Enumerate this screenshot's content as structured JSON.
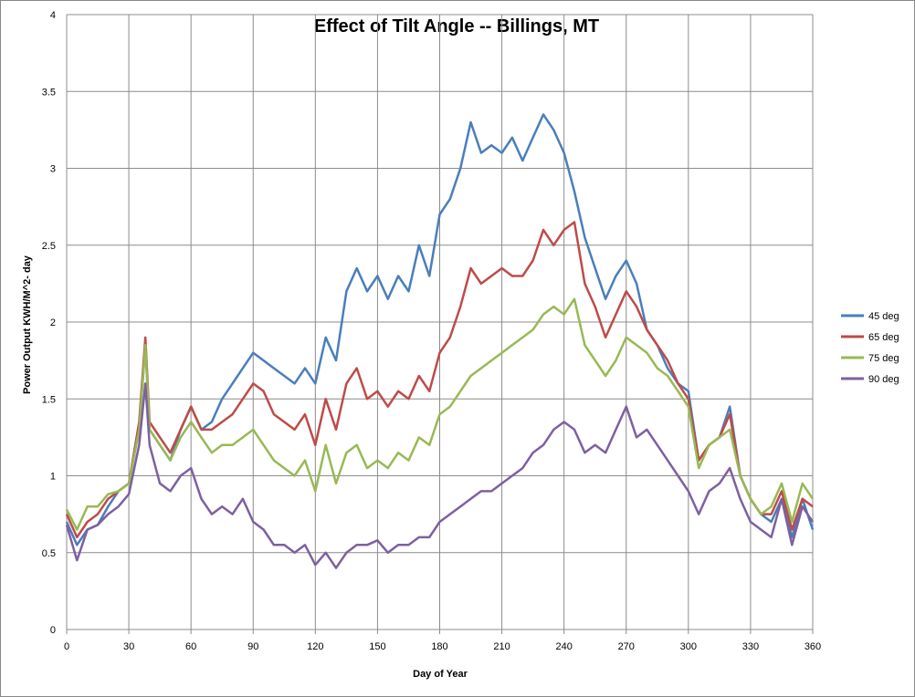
{
  "chart_data": {
    "type": "line",
    "title": "Effect of Tilt Angle -- Billings, MT",
    "xlabel": "Day of Year",
    "ylabel": "Power Output KWH/M^2- day",
    "xlim": [
      0,
      360
    ],
    "ylim": [
      0,
      4
    ],
    "x_ticks": [
      0,
      30,
      60,
      90,
      120,
      150,
      180,
      210,
      240,
      270,
      300,
      330,
      360
    ],
    "y_ticks": [
      0,
      0.5,
      1,
      1.5,
      2,
      2.5,
      3,
      3.5,
      4
    ],
    "grid": true,
    "legend_position": "right",
    "x": [
      0,
      5,
      10,
      15,
      20,
      25,
      30,
      35,
      38,
      40,
      45,
      50,
      55,
      60,
      65,
      70,
      75,
      80,
      85,
      90,
      95,
      100,
      105,
      110,
      115,
      120,
      125,
      130,
      135,
      140,
      145,
      150,
      155,
      160,
      165,
      170,
      175,
      180,
      185,
      190,
      195,
      200,
      205,
      210,
      215,
      220,
      225,
      230,
      235,
      240,
      245,
      250,
      255,
      260,
      265,
      270,
      275,
      280,
      285,
      290,
      295,
      300,
      305,
      310,
      315,
      320,
      325,
      330,
      335,
      340,
      345,
      350,
      355,
      360
    ],
    "series": [
      {
        "name": "45 deg",
        "color": "#4a7ebb",
        "values": [
          0.7,
          0.55,
          0.65,
          0.68,
          0.8,
          0.9,
          0.95,
          1.3,
          1.85,
          1.3,
          1.2,
          1.1,
          1.3,
          1.45,
          1.3,
          1.35,
          1.5,
          1.6,
          1.7,
          1.8,
          1.75,
          1.7,
          1.65,
          1.6,
          1.7,
          1.6,
          1.9,
          1.75,
          2.2,
          2.35,
          2.2,
          2.3,
          2.15,
          2.3,
          2.2,
          2.5,
          2.3,
          2.7,
          2.8,
          3.0,
          3.3,
          3.1,
          3.15,
          3.1,
          3.2,
          3.05,
          3.2,
          3.35,
          3.25,
          3.1,
          2.85,
          2.55,
          2.35,
          2.15,
          2.3,
          2.4,
          2.25,
          1.95,
          1.85,
          1.7,
          1.6,
          1.55,
          1.1,
          1.2,
          1.25,
          1.45,
          1.0,
          0.85,
          0.75,
          0.7,
          0.85,
          0.6,
          0.85,
          0.65
        ]
      },
      {
        "name": "65 deg",
        "color": "#be4b48",
        "values": [
          0.75,
          0.6,
          0.7,
          0.75,
          0.85,
          0.9,
          0.95,
          1.35,
          1.9,
          1.35,
          1.25,
          1.15,
          1.3,
          1.45,
          1.3,
          1.3,
          1.35,
          1.4,
          1.5,
          1.6,
          1.55,
          1.4,
          1.35,
          1.3,
          1.4,
          1.2,
          1.5,
          1.3,
          1.6,
          1.7,
          1.5,
          1.55,
          1.45,
          1.55,
          1.5,
          1.65,
          1.55,
          1.8,
          1.9,
          2.1,
          2.35,
          2.25,
          2.3,
          2.35,
          2.3,
          2.3,
          2.4,
          2.6,
          2.5,
          2.6,
          2.65,
          2.25,
          2.1,
          1.9,
          2.05,
          2.2,
          2.1,
          1.95,
          1.85,
          1.75,
          1.6,
          1.5,
          1.1,
          1.2,
          1.25,
          1.4,
          1.0,
          0.85,
          0.75,
          0.75,
          0.9,
          0.65,
          0.85,
          0.8
        ]
      },
      {
        "name": "75 deg",
        "color": "#98b954",
        "values": [
          0.78,
          0.65,
          0.8,
          0.8,
          0.88,
          0.9,
          0.95,
          1.3,
          1.85,
          1.3,
          1.2,
          1.1,
          1.25,
          1.35,
          1.25,
          1.15,
          1.2,
          1.2,
          1.25,
          1.3,
          1.2,
          1.1,
          1.05,
          1.0,
          1.1,
          0.9,
          1.2,
          0.95,
          1.15,
          1.2,
          1.05,
          1.1,
          1.05,
          1.15,
          1.1,
          1.25,
          1.2,
          1.4,
          1.45,
          1.55,
          1.65,
          1.7,
          1.75,
          1.8,
          1.85,
          1.9,
          1.95,
          2.05,
          2.1,
          2.05,
          2.15,
          1.85,
          1.75,
          1.65,
          1.75,
          1.9,
          1.85,
          1.8,
          1.7,
          1.65,
          1.55,
          1.45,
          1.05,
          1.2,
          1.25,
          1.3,
          1.0,
          0.85,
          0.75,
          0.8,
          0.95,
          0.7,
          0.95,
          0.85
        ]
      },
      {
        "name": "90 deg",
        "color": "#7d60a0",
        "values": [
          0.68,
          0.45,
          0.65,
          0.68,
          0.75,
          0.8,
          0.88,
          1.2,
          1.6,
          1.2,
          0.95,
          0.9,
          1.0,
          1.05,
          0.85,
          0.75,
          0.8,
          0.75,
          0.85,
          0.7,
          0.65,
          0.55,
          0.55,
          0.5,
          0.55,
          0.42,
          0.5,
          0.4,
          0.5,
          0.55,
          0.55,
          0.58,
          0.5,
          0.55,
          0.55,
          0.6,
          0.6,
          0.7,
          0.75,
          0.8,
          0.85,
          0.9,
          0.9,
          0.95,
          1.0,
          1.05,
          1.15,
          1.2,
          1.3,
          1.35,
          1.3,
          1.15,
          1.2,
          1.15,
          1.3,
          1.45,
          1.25,
          1.3,
          1.2,
          1.1,
          1.0,
          0.9,
          0.75,
          0.9,
          0.95,
          1.05,
          0.85,
          0.7,
          0.65,
          0.6,
          0.85,
          0.55,
          0.8,
          0.7
        ]
      }
    ]
  }
}
